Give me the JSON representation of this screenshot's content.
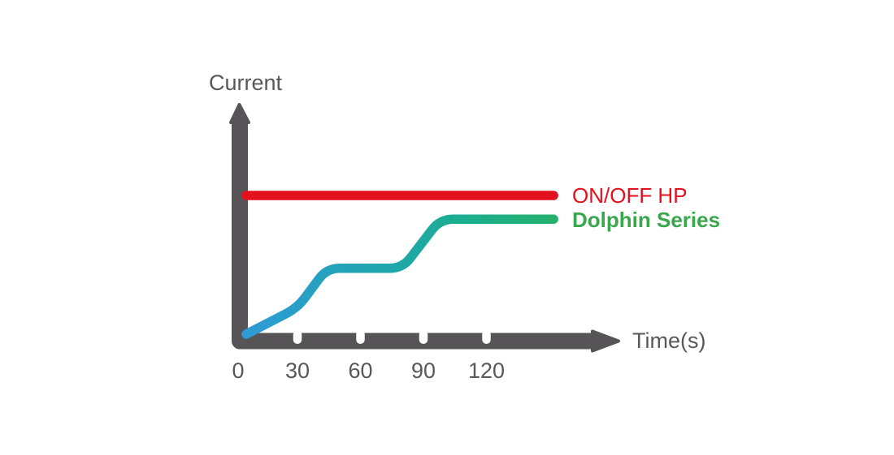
{
  "chart_data": {
    "type": "line",
    "title": "",
    "xlabel": "Time(s)",
    "ylabel": "Current",
    "x_ticks": [
      0,
      30,
      60,
      90,
      120
    ],
    "x_max": 152,
    "ylim": [
      0,
      1.15
    ],
    "grid": false,
    "axis_color": "#565456",
    "text_color": "#58585a",
    "tick_notch_color": "#ffffff",
    "legend_position": "right-of-line-ends",
    "series": [
      {
        "name": "ON/OFF HP",
        "type": "constant",
        "color": "#e3101e",
        "points": [
          [
            0,
            1.0
          ],
          [
            152,
            1.0
          ]
        ]
      },
      {
        "name": "Dolphin Series",
        "type": "stepped-soft-start",
        "gradient_colors": [
          "#2e9bd6",
          "#1fa6ad",
          "#1cae8e",
          "#25b06c"
        ],
        "gradient_offsets": [
          0,
          0.45,
          0.72,
          1
        ],
        "points": [
          [
            0,
            0.0
          ],
          [
            30,
            0.19
          ],
          [
            44,
            0.475
          ],
          [
            80,
            0.475
          ],
          [
            98,
            0.829
          ],
          [
            152,
            0.829
          ]
        ]
      }
    ],
    "legend": [
      {
        "label": "ON/OFF HP",
        "color": "#e3101e",
        "bold": false
      },
      {
        "label": "Dolphin Series",
        "color": "#3aa74c",
        "bold": true
      }
    ]
  }
}
